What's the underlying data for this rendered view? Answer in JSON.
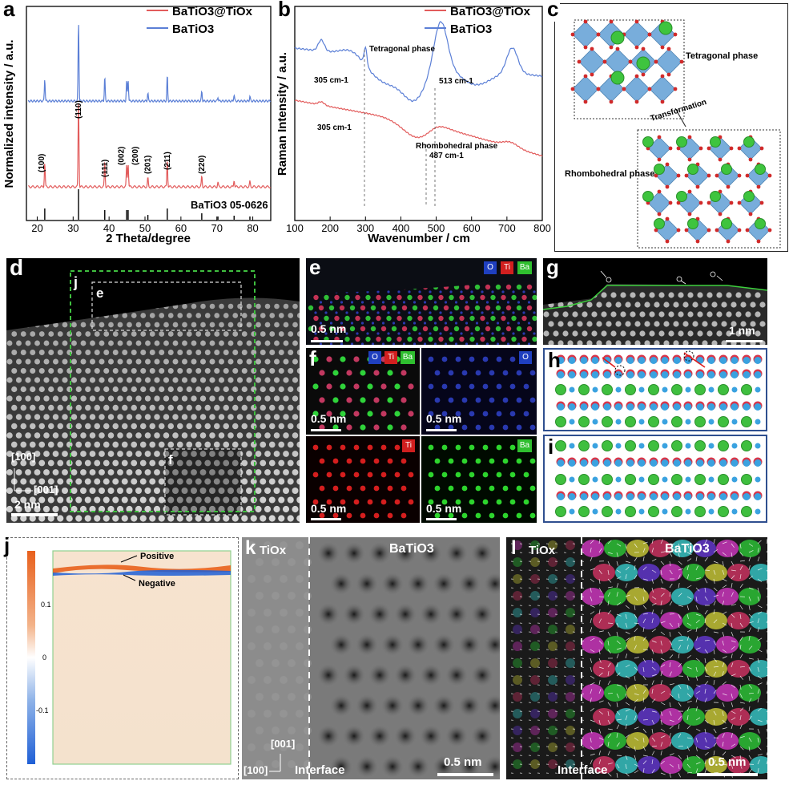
{
  "panels": {
    "a": {
      "label": "a",
      "legend": [
        "BaTiO3@TiOx",
        "BaTiO3"
      ],
      "xlabel": "2 Theta/degree",
      "ylabel": "Normalized intensity / a.u.",
      "xticks": [
        "20",
        "30",
        "40",
        "50",
        "60",
        "70",
        "80"
      ],
      "peaks": [
        "(100)",
        "(110)",
        "(111)",
        "(002)",
        "(200)",
        "(201)",
        "(211)",
        "(220)"
      ],
      "reference": "BaTiO3 05-0626"
    },
    "b": {
      "label": "b",
      "legend": [
        "BaTiO3@TiOx",
        "BaTiO3"
      ],
      "xlabel": "Wavenumber / cm",
      "ylabel": "Raman Intensity / a.u.",
      "xticks": [
        "100",
        "200",
        "300",
        "400",
        "500",
        "600",
        "700",
        "800"
      ],
      "annotations": {
        "tetragonal": "Tetragonal phase",
        "p305_top": "305 cm-1",
        "p513": "513 cm-1",
        "p305_bottom": "305 cm-1",
        "rhombo": "Rhombohedral phase",
        "p487": "487 cm-1"
      }
    },
    "c": {
      "label": "c",
      "tetragonal": "Tetragonal phase",
      "transformation": "Transformation",
      "rhombohedral": "Rhombohedral phase"
    },
    "d": {
      "label": "d",
      "j": "j",
      "e": "e",
      "f": "f",
      "axis_up": "[100]",
      "axis_right": "[001]",
      "scale": "2 nm"
    },
    "e": {
      "label": "e",
      "scale": "0.5 nm",
      "keys": [
        "O",
        "Ti",
        "Ba"
      ]
    },
    "f": {
      "label": "f",
      "scale": "0.5 nm",
      "keys": [
        "O",
        "Ti",
        "Ba"
      ],
      "key_o": "O",
      "key_ti": "Ti",
      "key_ba": "Ba"
    },
    "g": {
      "label": "g",
      "scale": "1 nm"
    },
    "h": {
      "label": "h"
    },
    "i": {
      "label": "i"
    },
    "j": {
      "label": "j",
      "positive": "Positive",
      "negative": "Negative",
      "cbar_ticks": [
        "0.1",
        "0",
        "-0.1"
      ]
    },
    "k": {
      "label": "k",
      "left": "TiOx",
      "right": "BaTiO3",
      "axis_up": "[001]",
      "axis_left": "[100]",
      "interface": "Interface",
      "scale": "0.5 nm"
    },
    "l": {
      "label": "l",
      "left": "TiOx",
      "right": "BaTiO3",
      "interface": "Interface",
      "scale": "0.5 nm"
    }
  },
  "chart_data": [
    {
      "type": "line",
      "panel": "a",
      "xlabel": "2 Theta/degree",
      "ylabel": "Normalized intensity / a.u.",
      "xlim": [
        17,
        85
      ],
      "series": [
        {
          "name": "BaTiO3@TiOx",
          "color": "#e25c5c",
          "peaks_2theta": [
            22.1,
            31.5,
            38.8,
            44.9,
            45.3,
            50.8,
            56.2,
            65.8,
            70.3,
            74.8,
            79.2
          ]
        },
        {
          "name": "BaTiO3",
          "color": "#5b7fd6",
          "peaks_2theta": [
            22.1,
            31.5,
            38.8,
            44.9,
            45.3,
            50.8,
            56.2,
            65.8,
            70.3,
            74.8,
            79.2
          ]
        }
      ]
    },
    {
      "type": "line",
      "panel": "b",
      "xlabel": "Wavenumber / cm",
      "ylabel": "Raman Intensity / a.u.",
      "xlim": [
        100,
        800
      ],
      "series": [
        {
          "name": "BaTiO3@TiOx",
          "color": "#e25c5c",
          "features_cm": [
            305,
            487
          ]
        },
        {
          "name": "BaTiO3",
          "color": "#5b7fd6",
          "features_cm": [
            305,
            513,
            715
          ]
        }
      ]
    }
  ],
  "colors": {
    "red": "#e25c5c",
    "blue": "#5b7fd6",
    "green_dash": "#3fbf3f",
    "box_border": "#2f4f8f"
  }
}
